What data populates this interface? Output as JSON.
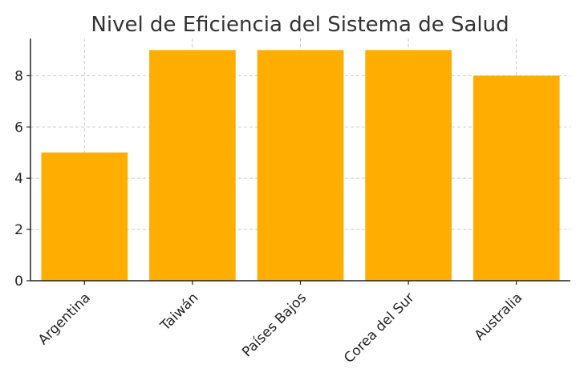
{
  "chart_data": {
    "type": "bar",
    "title": "Nivel de Eficiencia del Sistema de Salud",
    "xlabel": "",
    "ylabel": "",
    "categories": [
      "Argentina",
      "Taiwán",
      "Países Bajos",
      "Corea del Sur",
      "Australia"
    ],
    "values": [
      5,
      9,
      9,
      9,
      8
    ],
    "ylim": [
      0,
      9.45
    ],
    "yticks": [
      0,
      2,
      4,
      6,
      8
    ],
    "grid": true,
    "bar_color": "#FFAE00"
  }
}
